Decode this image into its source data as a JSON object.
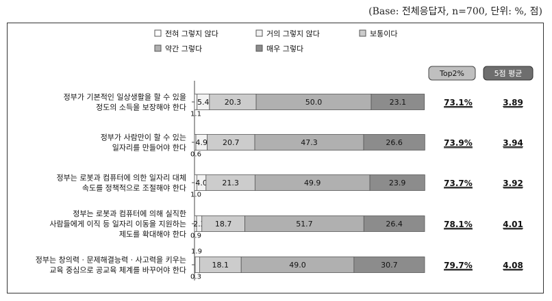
{
  "base_note": "(Base: 전체응답자, n=700, 단위: %, 점)",
  "legend": [
    "전혀 그렇지 않다",
    "거의 그렇지 않다",
    "보통이다",
    "약간 그렇다",
    "매우 그렇다"
  ],
  "summary_headers": {
    "top2": "Top2%",
    "avg": "5점 평균"
  },
  "colors": {
    "seg1": "#ffffff",
    "seg2": "#f2f2f2",
    "seg3": "#cccccc",
    "seg4": "#b0b0b0",
    "seg5": "#8c8c8c",
    "header_top2": "#bfbfbf",
    "header_avg": "#6e6e6e"
  },
  "chart_data": {
    "type": "bar",
    "orientation": "horizontal",
    "stacked": true,
    "xlim": [
      0,
      100
    ],
    "unit": "%",
    "categories": [
      [
        "정부가 기본적인 일상생활을 할 수 있을",
        "정도의 소득을 보장해야 한다"
      ],
      [
        "정부가 사람만이 할 수 있는",
        "일자리를 만들어야 한다"
      ],
      [
        "정부는 로봇과 컴퓨터에 의한 일자리 대체",
        "속도를 정책적으로 조절해야 한다"
      ],
      [
        "정부는 로봇과 컴퓨터에 의해 실직한",
        "사람들에게 이직 등 일자리 이동을 지원하는",
        "제도를 확대해야 한다"
      ],
      [
        "정부는 창의력 · 문제해결능력 · 사고력을 키우는",
        "교육 중심으로 공교육 체계를 바꾸어야 한다"
      ]
    ],
    "series": [
      {
        "name": "전혀 그렇지 않다",
        "values": [
          1.1,
          0.6,
          1.0,
          0.9,
          0.3
        ]
      },
      {
        "name": "거의 그렇지 않다",
        "values": [
          5.4,
          4.9,
          4.0,
          2.3,
          1.9
        ]
      },
      {
        "name": "보통이다",
        "values": [
          20.3,
          20.7,
          21.3,
          18.7,
          18.1
        ]
      },
      {
        "name": "약간 그렇다",
        "values": [
          50.0,
          47.3,
          49.9,
          51.7,
          49.0
        ]
      },
      {
        "name": "매우 그렇다",
        "values": [
          23.1,
          26.6,
          23.9,
          26.4,
          30.7
        ]
      }
    ],
    "value_labels": [
      [
        "1.1",
        "5.4",
        "20.3",
        "50.0",
        "23.1"
      ],
      [
        "0.6",
        "4.9",
        "20.7",
        "47.3",
        "26.6"
      ],
      [
        "1.0",
        "4.0",
        "21.3",
        "49.9",
        "23.9"
      ],
      [
        "0.9",
        "2.3",
        "18.7",
        "51.7",
        "26.4"
      ],
      [
        "0.3",
        "1.9",
        "18.1",
        "49.0",
        "30.7"
      ]
    ],
    "top2": [
      "73.1%",
      "73.9%",
      "73.7%",
      "78.1%",
      "79.7%"
    ],
    "avg": [
      "3.89",
      "3.94",
      "3.92",
      "4.01",
      "4.08"
    ]
  }
}
